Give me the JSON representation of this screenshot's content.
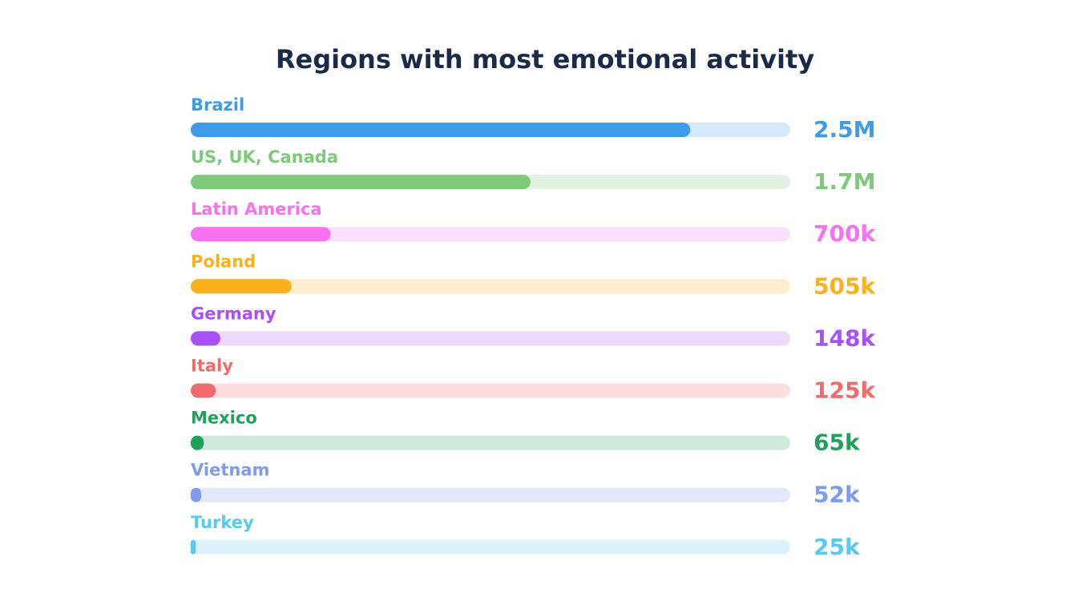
{
  "chart_data": {
    "type": "bar",
    "orientation": "horizontal",
    "title": "Regions with most emotional activity",
    "categories": [
      "Brazil",
      "US, UK, Canada",
      "Latin America",
      "Poland",
      "Germany",
      "Italy",
      "Mexico",
      "Vietnam",
      "Turkey"
    ],
    "values": [
      2500000,
      1700000,
      700000,
      505000,
      148000,
      125000,
      65000,
      52000,
      25000
    ],
    "value_labels": [
      "2.5M",
      "1.7M",
      "700k",
      "505k",
      "148k",
      "125k",
      "65k",
      "52k",
      "25k"
    ],
    "colors": [
      "#3d9be9",
      "#7fc97a",
      "#f871f0",
      "#fbb01f",
      "#a951f5",
      "#f06b6b",
      "#22a05a",
      "#7e9bf0",
      "#57c9f2"
    ],
    "xlim": [
      0,
      3000000
    ]
  }
}
